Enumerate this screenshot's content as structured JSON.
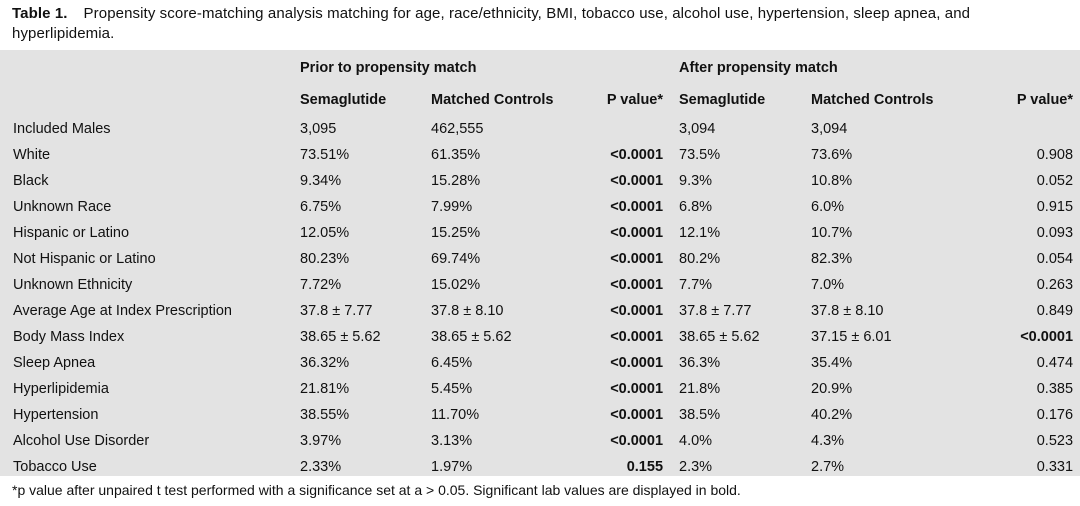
{
  "caption": {
    "label": "Table 1.",
    "text": "Propensity score-matching analysis matching for age, race/ethnicity, BMI, tobacco use, alcohol use, hypertension, sleep apnea, and hyperlipidemia."
  },
  "groups": {
    "prior": "Prior to propensity match",
    "after": "After propensity match"
  },
  "columns": {
    "semaglutide": "Semaglutide",
    "matched_controls": "Matched Controls",
    "p_value": "P value*"
  },
  "rows": [
    {
      "label": "Included Males",
      "prior_sema": "3,095",
      "prior_ctrl": "462,555",
      "prior_p": "",
      "after_sema": "3,094",
      "after_ctrl": "3,094",
      "after_p": ""
    },
    {
      "label": "White",
      "prior_sema": "73.51%",
      "prior_ctrl": "61.35%",
      "prior_p": "<0.0001",
      "after_sema": "73.5%",
      "after_ctrl": "73.6%",
      "after_p": "0.908"
    },
    {
      "label": "Black",
      "prior_sema": "9.34%",
      "prior_ctrl": "15.28%",
      "prior_p": "<0.0001",
      "after_sema": "9.3%",
      "after_ctrl": "10.8%",
      "after_p": "0.052"
    },
    {
      "label": "Unknown Race",
      "prior_sema": "6.75%",
      "prior_ctrl": "7.99%",
      "prior_p": "<0.0001",
      "after_sema": "6.8%",
      "after_ctrl": "6.0%",
      "after_p": "0.915"
    },
    {
      "label": "Hispanic or Latino",
      "prior_sema": "12.05%",
      "prior_ctrl": "15.25%",
      "prior_p": "<0.0001",
      "after_sema": "12.1%",
      "after_ctrl": "10.7%",
      "after_p": "0.093"
    },
    {
      "label": "Not Hispanic or Latino",
      "prior_sema": "80.23%",
      "prior_ctrl": "69.74%",
      "prior_p": "<0.0001",
      "after_sema": "80.2%",
      "after_ctrl": "82.3%",
      "after_p": "0.054"
    },
    {
      "label": "Unknown Ethnicity",
      "prior_sema": "7.72%",
      "prior_ctrl": "15.02%",
      "prior_p": "<0.0001",
      "after_sema": "7.7%",
      "after_ctrl": "7.0%",
      "after_p": "0.263"
    },
    {
      "label": "Average Age at Index Prescription",
      "prior_sema": "37.8 ± 7.77",
      "prior_ctrl": "37.8 ± 8.10",
      "prior_p": "<0.0001",
      "after_sema": "37.8 ± 7.77",
      "after_ctrl": "37.8 ± 8.10",
      "after_p": "0.849"
    },
    {
      "label": "Body Mass Index",
      "prior_sema": "38.65 ± 5.62",
      "prior_ctrl": "38.65 ± 5.62",
      "prior_p": "<0.0001",
      "after_sema": "38.65 ± 5.62",
      "after_ctrl": "37.15 ± 6.01",
      "after_p": "<0.0001"
    },
    {
      "label": "Sleep Apnea",
      "prior_sema": "36.32%",
      "prior_ctrl": "6.45%",
      "prior_p": "<0.0001",
      "after_sema": "36.3%",
      "after_ctrl": "35.4%",
      "after_p": "0.474"
    },
    {
      "label": "Hyperlipidemia",
      "prior_sema": "21.81%",
      "prior_ctrl": "5.45%",
      "prior_p": "<0.0001",
      "after_sema": "21.8%",
      "after_ctrl": "20.9%",
      "after_p": "0.385"
    },
    {
      "label": "Hypertension",
      "prior_sema": "38.55%",
      "prior_ctrl": "11.70%",
      "prior_p": "<0.0001",
      "after_sema": "38.5%",
      "after_ctrl": "40.2%",
      "after_p": "0.176"
    },
    {
      "label": "Alcohol Use Disorder",
      "prior_sema": "3.97%",
      "prior_ctrl": "3.13%",
      "prior_p": "<0.0001",
      "after_sema": "4.0%",
      "after_ctrl": "4.3%",
      "after_p": "0.523"
    },
    {
      "label": "Tobacco Use",
      "prior_sema": "2.33%",
      "prior_ctrl": "1.97%",
      "prior_p": "0.155",
      "after_sema": "2.3%",
      "after_ctrl": "2.7%",
      "after_p": "0.331"
    }
  ],
  "bold_cells": {
    "prior_p": [
      1,
      2,
      3,
      4,
      5,
      6,
      7,
      8,
      9,
      10,
      11,
      12,
      13
    ],
    "after_p": [
      8
    ]
  },
  "footnote": "*p value after unpaired t test performed with a significance set at a > 0.05. Significant lab values are displayed in bold."
}
